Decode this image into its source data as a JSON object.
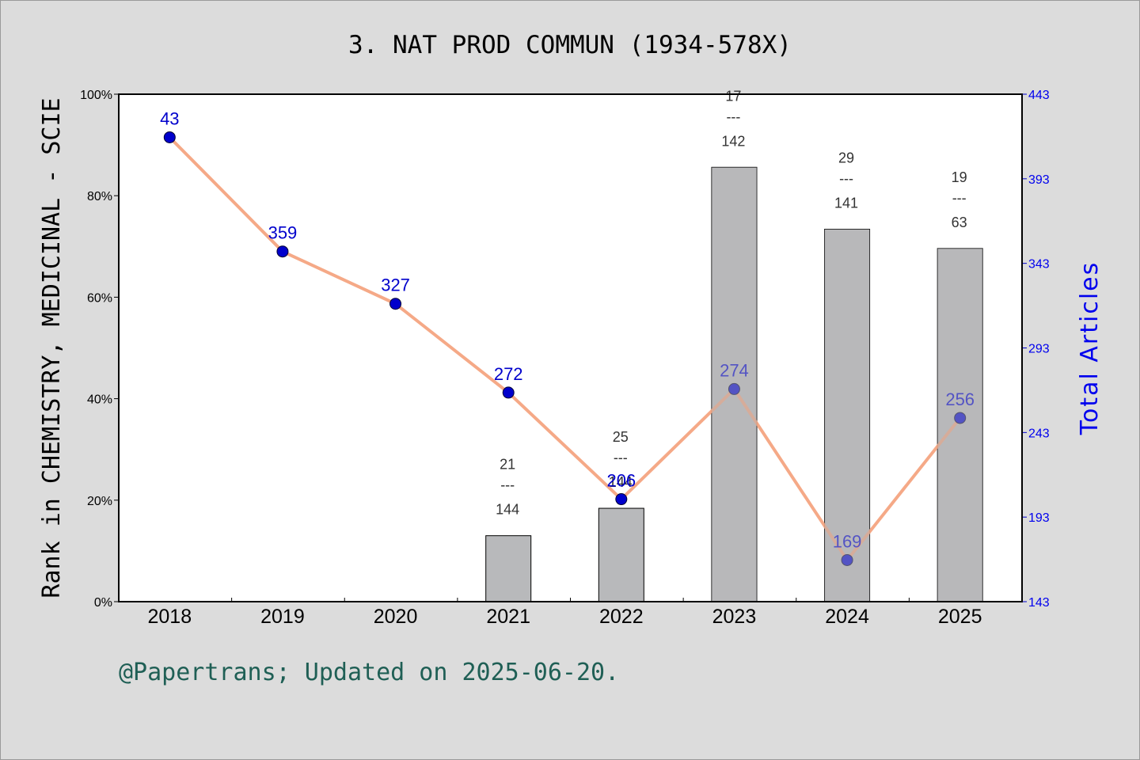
{
  "chart_data": {
    "type": "bar",
    "title": "3. NAT PROD COMMUN (1934-578X)",
    "ylabel": "Rank in CHEMISTRY, MEDICINAL - SCIE",
    "ylabel_right": "Total Articles",
    "categories": [
      "2018",
      "2019",
      "2020",
      "2021",
      "2022",
      "2023",
      "2024",
      "2025"
    ],
    "yticks_left": [
      "0%",
      "20%",
      "40%",
      "60%",
      "80%",
      "100%"
    ],
    "ylim_left": [
      0,
      100
    ],
    "yticks_right": [
      "143",
      "193",
      "243",
      "293",
      "343",
      "393",
      "443"
    ],
    "ylim_right": [
      143,
      443
    ],
    "series": [
      {
        "type": "bar",
        "values": [
          null,
          null,
          null,
          13,
          18.4,
          85.6,
          73.4,
          69.6
        ],
        "rank_labels": [
          null,
          null,
          null,
          {
            "top": "21",
            "sep": "---",
            "bottom": "144"
          },
          {
            "top": "25",
            "sep": "---",
            "bottom": "144"
          },
          {
            "top": "17",
            "sep": "---",
            "bottom": "142"
          },
          {
            "top": "29",
            "sep": "---",
            "bottom": "141"
          },
          {
            "top": "19",
            "sep": "---",
            "bottom": "63"
          }
        ],
        "color": "#b8b9bb"
      },
      {
        "type": "line",
        "values": [
          43,
          359,
          327,
          272,
          206,
          274,
          169,
          256
        ],
        "labels": [
          "43",
          "359",
          "327",
          "272",
          "206",
          "274",
          "169",
          "256"
        ],
        "line_color": "#f4a07a",
        "marker_color": "#0000cc"
      }
    ],
    "line_positions_pct": [
      91.5,
      69,
      58.7,
      41.2,
      20.2,
      41.9,
      8.2,
      36.2
    ],
    "grid": false
  },
  "footer": "@Papertrans; Updated on 2025-06-20."
}
